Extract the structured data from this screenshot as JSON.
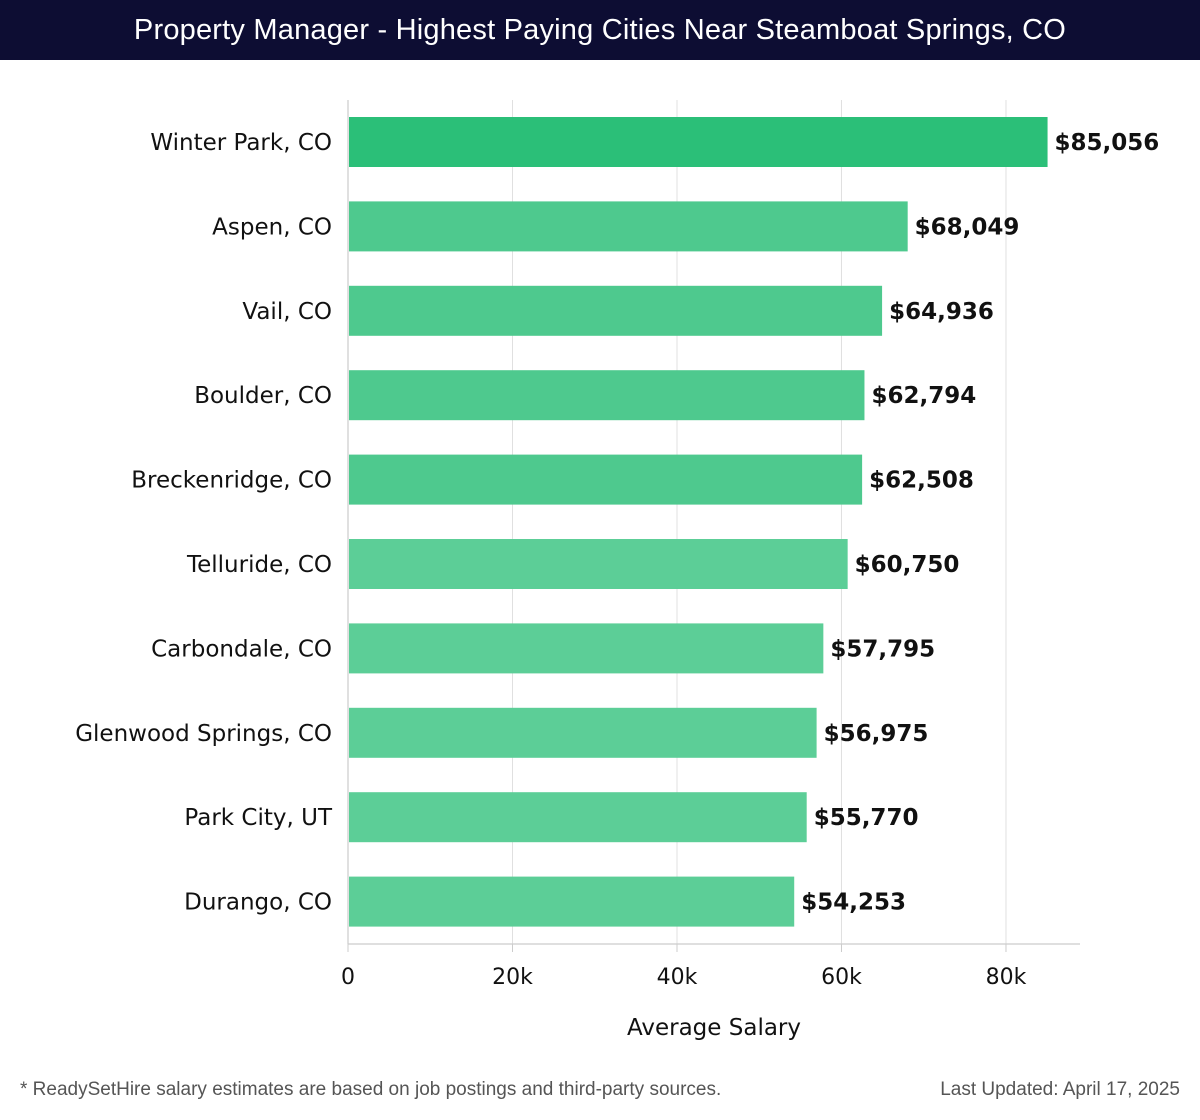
{
  "header": {
    "title": "Property Manager - Highest Paying Cities Near Steamboat Springs, CO"
  },
  "chart_data": {
    "type": "bar",
    "orientation": "horizontal",
    "title": "Property Manager - Highest Paying Cities Near Steamboat Springs, CO",
    "xlabel": "Average Salary",
    "ylabel": "",
    "xlim": [
      0,
      89000
    ],
    "xticks": [
      0,
      20000,
      40000,
      60000,
      80000
    ],
    "xtick_labels": [
      "0",
      "20k",
      "40k",
      "60k",
      "80k"
    ],
    "grid": true,
    "categories": [
      "Winter Park, CO",
      "Aspen, CO",
      "Vail, CO",
      "Boulder, CO",
      "Breckenridge, CO",
      "Telluride, CO",
      "Carbondale, CO",
      "Glenwood Springs, CO",
      "Park City, UT",
      "Durango, CO"
    ],
    "values": [
      85056,
      68049,
      64936,
      62794,
      62508,
      60750,
      57795,
      56975,
      55770,
      54253
    ],
    "value_labels": [
      "$85,056",
      "$68,049",
      "$64,936",
      "$62,794",
      "$62,508",
      "$60,750",
      "$57,795",
      "$56,975",
      "$55,770",
      "$54,253"
    ],
    "colors": {
      "top_bar": "#2bbf78",
      "bar": "#4ec98e",
      "bar_light": "#5cce97",
      "grid": "#e0e0e0",
      "axis": "#cccccc",
      "label": "#111111"
    }
  },
  "footer": {
    "note": "* ReadySetHire salary estimates are based on job postings and third-party sources.",
    "updated": "Last Updated: April 17, 2025"
  }
}
